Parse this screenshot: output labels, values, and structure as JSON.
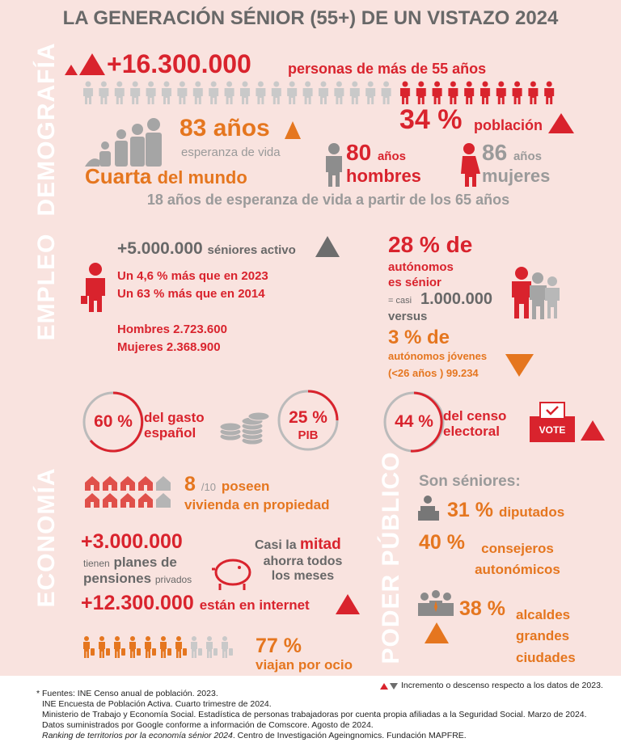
{
  "title": "LA GENERACIÓN SÉNIOR (55+) DE UN VISTAZO 2024",
  "demografia": {
    "section": "DEMOGRAFÍA",
    "population": "+16.300.000",
    "population_label": "personas de más de 55 años",
    "share": "34 %",
    "share_label": "población",
    "life_expectancy": "83 años",
    "life_label": "esperanza de vida",
    "rank": "Cuarta",
    "rank_label": "del mundo",
    "men": "80",
    "men_unit": "años",
    "men_label": "hombres",
    "women": "86",
    "women_unit": "años",
    "women_label": "mujeres",
    "note": "18 años de esperanza de vida a partir de los 65 años"
  },
  "empleo": {
    "section": "EMPLEO",
    "active": "+5.000.000",
    "active_label": "séniores activo",
    "growth": [
      "Un 4,6 % más que en 2023",
      "Un 63 % más que en 2014"
    ],
    "gender": [
      "Hombres 2.723.600",
      "Mujeres 2.368.900"
    ],
    "self_employed": "28 % de",
    "self_employed_lines": [
      "autónomos",
      "es sénior"
    ],
    "approx": "= casi",
    "approx_value": "1.000.000",
    "versus": "versus",
    "young": "3 % de",
    "young_lines": [
      "autónomos jóvenes",
      "(<26 años ) 99.234"
    ]
  },
  "indicadores": {
    "spending": "60 %",
    "spending_label": "del gasto español",
    "gdp": "25 %",
    "gdp_label": "PIB",
    "census": "44 %",
    "census_label": "del censo electoral",
    "vote": "VOTE"
  },
  "economia": {
    "section": "ECONOMÍA",
    "housing": "8",
    "housing_of": "/10",
    "housing_verb": "poseen",
    "housing_label": "vivienda en propiedad",
    "pensions": "+3.000.000",
    "pensions_pre": "tienen",
    "pensions_bold1": "planes de",
    "pensions_bold2": "pensiones",
    "pensions_post": "privados",
    "savings_pre": "Casi la",
    "savings_bold": "mitad",
    "savings_label": "ahorra todos los meses",
    "internet": "+12.300.000",
    "internet_label": "están en internet",
    "travel": "77 %",
    "travel_label": "viajan por ocio"
  },
  "poder_publico": {
    "section": "PODER PÚBLICO",
    "heading": "Son séniores:",
    "deputies": "31 %",
    "deputies_label": "diputados",
    "councillors": "40 %",
    "councillors_label": "consejeros autonómicos",
    "mayors": "38 %",
    "mayors_label": "alcaldes grandes ciudades"
  },
  "footer": {
    "legend": "Incremento o descenso respecto a los datos de 2023.",
    "sources": [
      "* Fuentes: INE Censo anual de población. 2023.",
      "INE Encuesta de Población Activa. Cuarto trimestre de 2024.",
      "Ministerio de Trabajo y Economía Social. Estadística de personas trabajadoras por cuenta propia afiliadas a la Seguridad Social. Marzo de 2024.",
      "Datos suministrados por Google conforme a información de Comscore. Agosto de 2024."
    ],
    "ranking_italic": "Ranking de territorios por la economía sénior 2024",
    "ranking_rest": ". Centro de Investigación Ageingnomics. Fundación MAPFRE."
  }
}
